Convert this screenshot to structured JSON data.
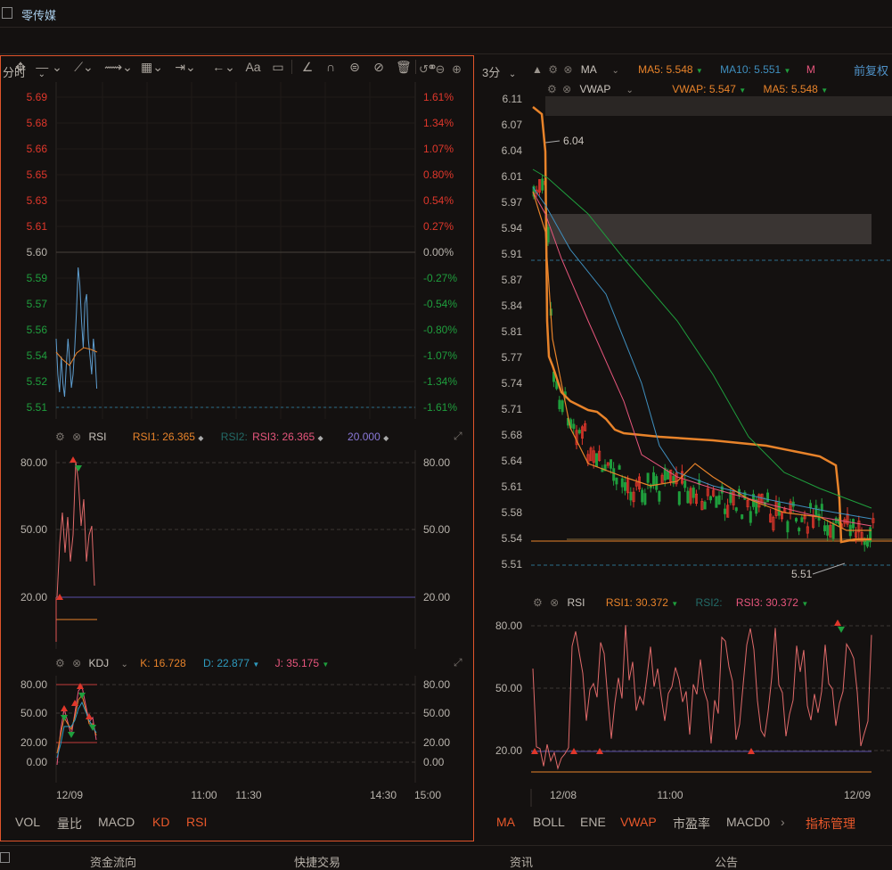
{
  "title": "零传媒",
  "colors": {
    "red": "#e0372b",
    "green": "#1f9e3d",
    "orange": "#e8832a",
    "blue": "#3f8fbf",
    "pink": "#e8567d",
    "purple": "#8a78d8",
    "panelBorder": "#e0542b"
  },
  "toolbar": {
    "icons": [
      "move-icon",
      "line-icon",
      "trend-icon",
      "channel-icon",
      "fib-icon",
      "measure-icon",
      "arrow-icon",
      "text-icon",
      "comment-icon",
      "angle-icon",
      "magnet-icon",
      "lock-icon",
      "hide-icon",
      "trash-icon",
      "link-icon"
    ],
    "text_label": "Aa"
  },
  "left": {
    "period": "分时",
    "price_levels": [
      "5.69",
      "5.68",
      "5.66",
      "5.65",
      "5.63",
      "5.61",
      "5.60",
      "5.59",
      "5.57",
      "5.56",
      "5.54",
      "5.52",
      "5.51"
    ],
    "pct_levels": [
      "1.61%",
      "1.34%",
      "1.07%",
      "0.80%",
      "0.54%",
      "0.27%",
      "0.00%",
      "-0.27%",
      "-0.54%",
      "-0.80%",
      "-1.07%",
      "-1.34%",
      "-1.61%"
    ],
    "rsi": {
      "name": "RSI",
      "rsi1": "RSI1: 26.365",
      "rsi2": "RSI2:",
      "rsi3": "RSI3: 26.365",
      "rsi_extra": "20.000",
      "levels": [
        "80.00",
        "50.00",
        "20.00"
      ]
    },
    "kdj": {
      "name": "KDJ",
      "k": "K: 16.728",
      "d": "D: 22.877",
      "j": "J: 35.175",
      "levels": [
        "80.00",
        "50.00",
        "20.00",
        "0.00"
      ]
    },
    "time_labels": [
      "12/09",
      "11:00",
      "11:30",
      "14:30",
      "15:00"
    ],
    "tabs": [
      "VOL",
      "量比",
      "MACD",
      "KD",
      "RSI"
    ]
  },
  "right": {
    "period": "3分",
    "ma": {
      "name": "MA",
      "ma5": "MA5: 5.548",
      "ma10": "MA10: 5.551",
      "cut": "M"
    },
    "vwap": {
      "name": "VWAP",
      "vwap": "VWAP: 5.547",
      "ma5": "MA5: 5.548"
    },
    "fq": "前复权",
    "price_levels": [
      "6.11",
      "6.07",
      "6.04",
      "6.01",
      "5.97",
      "5.94",
      "5.91",
      "5.87",
      "5.84",
      "5.81",
      "5.77",
      "5.74",
      "5.71",
      "5.68",
      "5.64",
      "5.61",
      "5.58",
      "5.54",
      "5.51"
    ],
    "high_label": "6.04",
    "low_label": "5.51",
    "rsi": {
      "name": "RSI",
      "rsi1": "RSI1: 30.372",
      "rsi2": "RSI2:",
      "rsi3": "RSI3: 30.372",
      "levels": [
        "80.00",
        "50.00",
        "20.00"
      ]
    },
    "time_labels": [
      "12/08",
      "11:00",
      "12/09"
    ],
    "tabs": [
      "MA",
      "BOLL",
      "ENE",
      "VWAP",
      "市盈率",
      "MACD0"
    ],
    "manage": "指标管理"
  },
  "bottom_tabs": [
    "资金流向",
    "快捷交易",
    "资讯",
    "公告"
  ]
}
